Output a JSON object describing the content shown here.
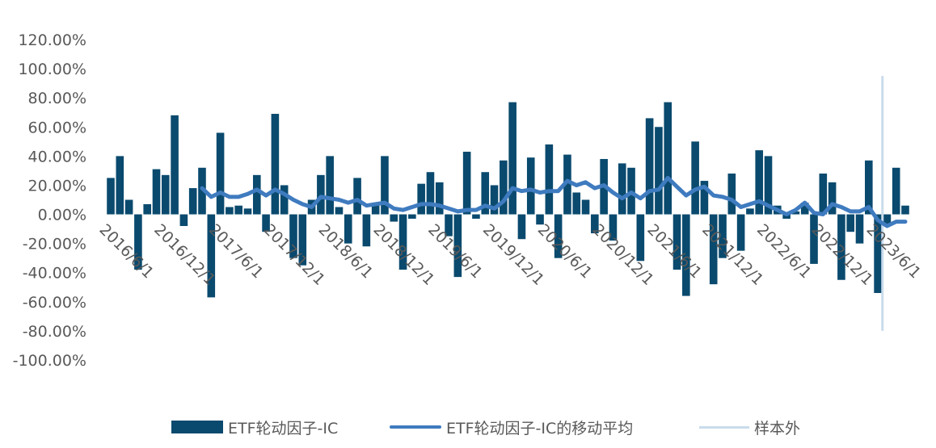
{
  "colors": {
    "bar": "#0a4a6e",
    "moving_average": "#3f7bbf",
    "out_of_sample": "#c9dcec",
    "axis_text": "#595959"
  },
  "chart_data": {
    "type": "bar",
    "ylim": [
      -1.0,
      1.2
    ],
    "y_ticks": [
      "120.00%",
      "100.00%",
      "80.00%",
      "60.00%",
      "40.00%",
      "20.00%",
      "0.00%",
      "-20.00%",
      "-40.00%",
      "-60.00%",
      "-80.00%",
      "-100.00%"
    ],
    "x_tick_labels": [
      "2016/6/1",
      "2016/12/1",
      "2017/6/1",
      "2017/12/1",
      "2018/6/1",
      "2018/12/1",
      "2019/6/1",
      "2019/12/1",
      "2020/6/1",
      "2020/12/1",
      "2021/6/1",
      "2021/12/1",
      "2022/6/1",
      "2022/12/1",
      "2023/6/1"
    ],
    "x_tick_start": "2016-06",
    "series": [
      {
        "name": "ETF轮动因子-IC",
        "type": "bar",
        "values": [
          0.25,
          0.4,
          0.1,
          -0.38,
          0.07,
          0.31,
          0.27,
          0.68,
          -0.08,
          0.18,
          0.32,
          -0.57,
          0.56,
          0.05,
          0.06,
          0.04,
          0.27,
          -0.12,
          0.69,
          0.2,
          -0.3,
          -0.35,
          0.1,
          0.27,
          0.4,
          0.05,
          -0.2,
          0.25,
          -0.22,
          0.07,
          0.4,
          -0.05,
          -0.38,
          -0.03,
          0.21,
          0.29,
          0.22,
          -0.15,
          -0.43,
          0.43,
          -0.03,
          0.29,
          0.2,
          0.37,
          0.77,
          -0.17,
          0.39,
          -0.07,
          0.48,
          -0.3,
          0.41,
          0.15,
          0.1,
          -0.13,
          0.38,
          -0.18,
          0.35,
          0.32,
          -0.32,
          0.66,
          0.6,
          0.77,
          -0.38,
          -0.56,
          0.5,
          0.23,
          -0.48,
          -0.3,
          0.28,
          -0.25,
          0.04,
          0.44,
          0.4,
          0.06,
          -0.03,
          0.02,
          0.08,
          -0.34,
          0.28,
          0.22,
          -0.45,
          -0.12,
          -0.2,
          0.37,
          -0.54,
          -0.08,
          0.32,
          0.06
        ]
      },
      {
        "name": "ETF轮动因子-IC的移动平均",
        "type": "line",
        "values": [
          null,
          null,
          null,
          null,
          null,
          null,
          null,
          null,
          null,
          null,
          0.18,
          0.12,
          0.15,
          0.12,
          0.12,
          0.14,
          0.17,
          0.13,
          0.17,
          0.14,
          0.1,
          0.07,
          0.05,
          0.12,
          0.11,
          0.1,
          0.08,
          0.1,
          0.06,
          0.07,
          0.08,
          0.04,
          0.03,
          0.05,
          0.07,
          0.07,
          0.06,
          0.04,
          0.02,
          0.03,
          0.03,
          0.06,
          0.04,
          0.09,
          0.18,
          0.16,
          0.17,
          0.15,
          0.16,
          0.16,
          0.23,
          0.2,
          0.22,
          0.18,
          0.2,
          0.15,
          0.11,
          0.15,
          0.11,
          0.16,
          0.17,
          0.25,
          0.19,
          0.13,
          0.17,
          0.19,
          0.13,
          0.12,
          0.1,
          0.05,
          0.07,
          0.09,
          0.06,
          0.03,
          0.0,
          0.03,
          0.08,
          0.01,
          0.0,
          0.07,
          0.05,
          0.02,
          0.02,
          0.05,
          -0.04,
          -0.08,
          -0.05,
          -0.05
        ]
      },
      {
        "name": "样本外",
        "type": "vertical-line",
        "x_index": 84,
        "y_range": [
          -0.8,
          0.95
        ]
      }
    ],
    "legend_position": "bottom",
    "grid": false
  }
}
